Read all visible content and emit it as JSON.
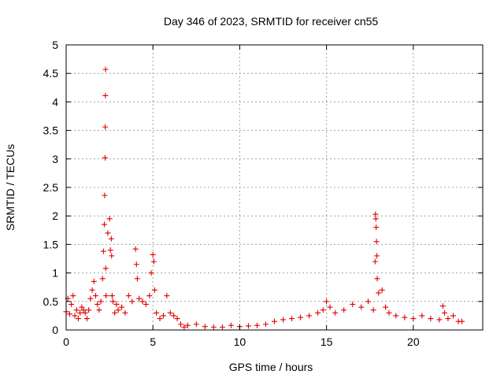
{
  "chart_data": {
    "type": "scatter",
    "title": "Day 346 of 2023, SRMTID for receiver cn55",
    "xlabel": "GPS time / hours",
    "ylabel": "SRMTID / TECUs",
    "xlim": [
      0,
      24
    ],
    "ylim": [
      0,
      5
    ],
    "xticks": [
      0,
      5,
      10,
      15,
      20
    ],
    "xtick_labels": [
      "0",
      "5",
      "10",
      "15",
      "20"
    ],
    "yticks": [
      0,
      0.5,
      1,
      1.5,
      2,
      2.5,
      3,
      3.5,
      4,
      4.5,
      5
    ],
    "ytick_labels": [
      "0",
      "0.5",
      "1",
      "1.5",
      "2",
      "2.5",
      "3",
      "3.5",
      "4",
      "4.5",
      "5"
    ],
    "grid": true,
    "marker": "+",
    "series_color": "#e00000",
    "series": [
      {
        "name": "SRMTID",
        "x": [
          0.0,
          0.1,
          0.2,
          0.3,
          0.4,
          0.5,
          0.6,
          0.7,
          0.8,
          0.9,
          1.0,
          1.1,
          1.2,
          1.3,
          1.4,
          1.5,
          1.6,
          1.7,
          1.8,
          1.9,
          2.0,
          2.1,
          2.15,
          2.2,
          2.22,
          2.24,
          2.25,
          2.26,
          2.27,
          2.28,
          2.3,
          2.4,
          2.5,
          2.55,
          2.6,
          2.62,
          2.65,
          2.7,
          2.8,
          2.9,
          3.0,
          3.2,
          3.4,
          3.6,
          3.8,
          4.0,
          4.05,
          4.1,
          4.2,
          4.4,
          4.6,
          4.8,
          4.9,
          5.0,
          5.05,
          5.1,
          5.2,
          5.4,
          5.6,
          5.8,
          6.0,
          6.2,
          6.4,
          6.6,
          6.8,
          7.0,
          7.5,
          8.0,
          8.5,
          9.0,
          9.5,
          10.0,
          10.5,
          11.0,
          11.5,
          12.0,
          12.5,
          13.0,
          13.5,
          14.0,
          14.5,
          14.8,
          15.0,
          15.2,
          15.5,
          16.0,
          16.5,
          17.0,
          17.4,
          17.7,
          17.8,
          17.82,
          17.84,
          17.86,
          17.88,
          17.9,
          17.92,
          18.0,
          18.2,
          18.4,
          18.6,
          19.0,
          19.5,
          20.0,
          20.5,
          21.0,
          21.5,
          21.7,
          21.8,
          22.0,
          22.3,
          22.6,
          22.8
        ],
        "y": [
          0.32,
          0.55,
          0.28,
          0.45,
          0.6,
          0.25,
          0.35,
          0.2,
          0.3,
          0.4,
          0.35,
          0.3,
          0.2,
          0.35,
          0.55,
          0.7,
          0.85,
          0.6,
          0.45,
          0.35,
          0.5,
          0.9,
          1.38,
          1.85,
          2.36,
          3.02,
          3.56,
          4.11,
          4.57,
          1.08,
          0.6,
          1.7,
          1.95,
          1.4,
          1.6,
          1.3,
          0.6,
          0.5,
          0.3,
          0.45,
          0.35,
          0.4,
          0.3,
          0.6,
          0.5,
          1.42,
          1.15,
          0.9,
          0.55,
          0.5,
          0.45,
          0.6,
          1.0,
          1.32,
          1.2,
          0.7,
          0.3,
          0.2,
          0.25,
          0.6,
          0.3,
          0.25,
          0.2,
          0.1,
          0.05,
          0.08,
          0.1,
          0.06,
          0.05,
          0.05,
          0.08,
          0.06,
          0.07,
          0.08,
          0.1,
          0.15,
          0.18,
          0.2,
          0.22,
          0.25,
          0.3,
          0.35,
          0.5,
          0.4,
          0.3,
          0.35,
          0.45,
          0.4,
          0.5,
          0.35,
          1.2,
          2.03,
          1.95,
          1.8,
          1.55,
          1.3,
          0.9,
          0.65,
          0.7,
          0.4,
          0.3,
          0.25,
          0.22,
          0.2,
          0.25,
          0.2,
          0.18,
          0.42,
          0.3,
          0.2,
          0.25,
          0.15,
          0.15
        ]
      }
    ]
  }
}
